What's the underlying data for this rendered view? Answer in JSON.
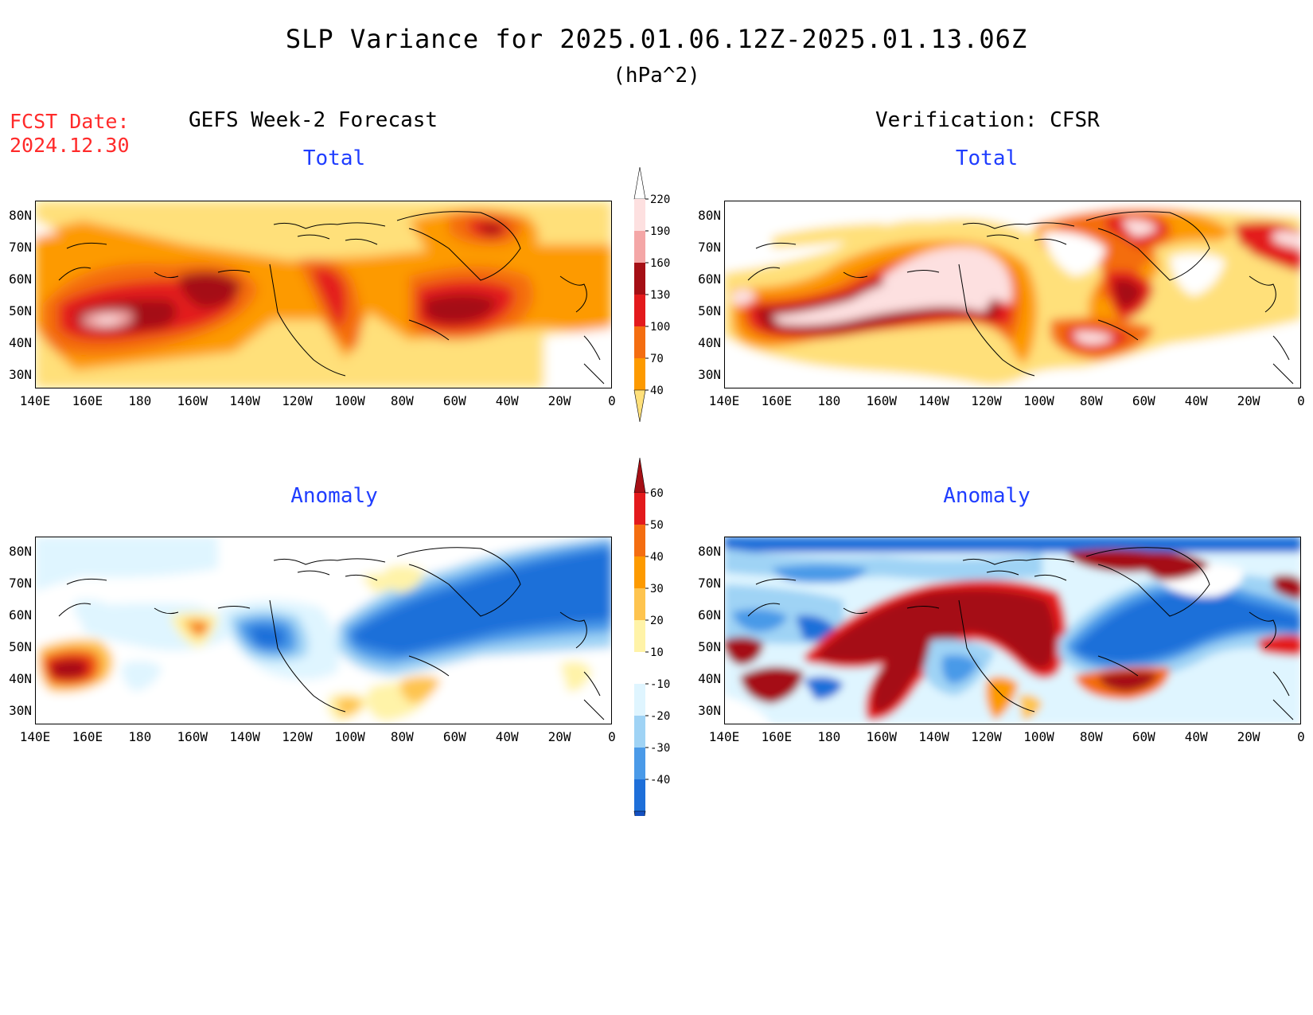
{
  "header": {
    "title": "SLP Variance for 2025.01.06.12Z-2025.01.13.06Z",
    "units": "(hPa^2)",
    "fcst_label": "FCST Date:",
    "fcst_date": "2024.12.30",
    "left_column": "GEFS Week-2 Forecast",
    "right_column": "Verification: CFSR"
  },
  "panels": {
    "fc_total_title": "Total",
    "ob_total_title": "Total",
    "fc_anom_title": "Anomaly",
    "ob_anom_title": "Anomaly"
  },
  "axes": {
    "lat_labels": [
      "80N",
      "70N",
      "60N",
      "50N",
      "40N",
      "30N"
    ],
    "lon_labels": [
      "140E",
      "160E",
      "180",
      "160W",
      "140W",
      "120W",
      "100W",
      "80W",
      "60W",
      "40W",
      "20W",
      "0"
    ]
  },
  "colorbars": {
    "total": {
      "labels": [
        "220",
        "190",
        "160",
        "130",
        "100",
        "70",
        "40"
      ],
      "colors": [
        "#fde0e0",
        "#f4a6a6",
        "#a50f15",
        "#e31a1c",
        "#f46d10",
        "#fd9a00",
        "#ffe07a"
      ]
    },
    "anomaly": {
      "labels": [
        "60",
        "50",
        "40",
        "30",
        "20",
        "10",
        "-10",
        "-20",
        "-30",
        "-40"
      ],
      "colors": [
        "#a50f15",
        "#e31a1c",
        "#f46d10",
        "#fd9a00",
        "#fec44f",
        "#fff3a8",
        "#ffffff",
        "#dff5ff",
        "#9fd3f5",
        "#4a9ae8",
        "#1e6fd9",
        "#1450c0"
      ]
    }
  }
}
